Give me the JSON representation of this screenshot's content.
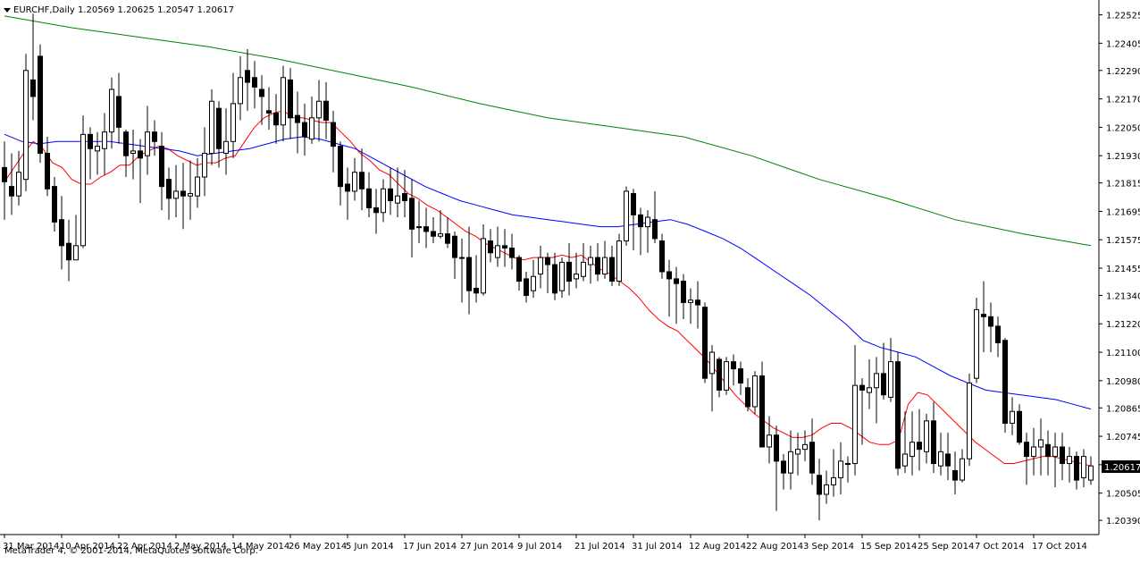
{
  "header": {
    "symbol_line": "EURCHF,Daily  1.20569 1.20625 1.20547 1.20617"
  },
  "footer": {
    "copyright": "MetaTrader 4, © 2001-2014, MetaQuotes Software Corp."
  },
  "colors": {
    "bull_body": "#ffffff",
    "bear_body": "#000000",
    "ma_fast": "#ff0000",
    "ma_mid": "#0000ff",
    "ma_slow": "#008000",
    "price_tag_bg": "#000000"
  },
  "chart_data": {
    "type": "candlestick",
    "title": "EURCHF,Daily",
    "last_quote": {
      "open": 1.20569,
      "high": 1.20625,
      "low": 1.20547,
      "close": 1.20617
    },
    "current_price_label": "1.20617",
    "ylim": [
      1.2033,
      1.2258
    ],
    "y_ticks": [
      "1.22525",
      "1.22405",
      "1.22290",
      "1.22170",
      "1.22050",
      "1.21930",
      "1.21815",
      "1.21695",
      "1.21575",
      "1.21455",
      "1.21340",
      "1.21220",
      "1.21100",
      "1.20980",
      "1.20865",
      "1.20745",
      "1.20625",
      "1.20505",
      "1.20390"
    ],
    "x_ticks": [
      "31 Mar 2014",
      "10 Apr 2014",
      "22 Apr 2014",
      "2 May 2014",
      "14 May 2014",
      "26 May 2014",
      "5 Jun 2014",
      "17 Jun 2014",
      "27 Jun 2014",
      "9 Jul 2014",
      "21 Jul 2014",
      "31 Jul 2014",
      "12 Aug 2014",
      "22 Aug 2014",
      "3 Sep 2014",
      "15 Sep 2014",
      "25 Sep 2014",
      "7 Oct 2014",
      "17 Oct 2014"
    ],
    "x_tick_bar_index": [
      0,
      8,
      16,
      24,
      32,
      40,
      48,
      56,
      64,
      72,
      80,
      88,
      96,
      104,
      112,
      120,
      128,
      136,
      144
    ],
    "grid": false,
    "candles": [
      [
        1.2188,
        1.2182,
        1.2199,
        1.2166
      ],
      [
        1.218,
        1.2176,
        1.2194,
        1.2168
      ],
      [
        1.2176,
        1.2186,
        1.2195,
        1.2172
      ],
      [
        1.2183,
        1.2229,
        1.2236,
        1.2178
      ],
      [
        1.2225,
        1.2218,
        1.2253,
        1.2208
      ],
      [
        1.2235,
        1.2194,
        1.224,
        1.219
      ],
      [
        1.2194,
        1.2179,
        1.2201,
        1.2176
      ],
      [
        1.218,
        1.2165,
        1.2184,
        1.2161
      ],
      [
        1.2166,
        1.2155,
        1.2176,
        1.2145
      ],
      [
        1.2156,
        1.2149,
        1.2166,
        1.214
      ],
      [
        1.2149,
        1.2155,
        1.2168,
        1.2149
      ],
      [
        1.2155,
        1.2202,
        1.221,
        1.2154
      ],
      [
        1.2202,
        1.2196,
        1.2205,
        1.2183
      ],
      [
        1.2195,
        1.2197,
        1.2203,
        1.2185
      ],
      [
        1.2196,
        1.2203,
        1.2211,
        1.2185
      ],
      [
        1.2203,
        1.2221,
        1.2226,
        1.2196
      ],
      [
        1.2218,
        1.2205,
        1.2228,
        1.2198
      ],
      [
        1.2203,
        1.2193,
        1.2204,
        1.2184
      ],
      [
        1.2194,
        1.2195,
        1.2204,
        1.2183
      ],
      [
        1.2195,
        1.2192,
        1.22,
        1.2173
      ],
      [
        1.2193,
        1.2203,
        1.2214,
        1.2185
      ],
      [
        1.2203,
        1.2199,
        1.2208,
        1.2193
      ],
      [
        1.2197,
        1.218,
        1.2203,
        1.217
      ],
      [
        1.2183,
        1.2175,
        1.2188,
        1.2166
      ],
      [
        1.2175,
        1.2178,
        1.2189,
        1.2167
      ],
      [
        1.2178,
        1.2176,
        1.219,
        1.2162
      ],
      [
        1.2176,
        1.2177,
        1.2191,
        1.2166
      ],
      [
        1.2176,
        1.2184,
        1.2192,
        1.2171
      ],
      [
        1.2184,
        1.2194,
        1.2205,
        1.2176
      ],
      [
        1.2194,
        1.2216,
        1.2221,
        1.2189
      ],
      [
        1.2213,
        1.2196,
        1.2216,
        1.2188
      ],
      [
        1.2194,
        1.2199,
        1.2213,
        1.2185
      ],
      [
        1.2199,
        1.2215,
        1.2228,
        1.2192
      ],
      [
        1.2215,
        1.2226,
        1.2235,
        1.2208
      ],
      [
        1.2229,
        1.2224,
        1.2238,
        1.2212
      ],
      [
        1.2226,
        1.2222,
        1.2233,
        1.2213
      ],
      [
        1.2221,
        1.2218,
        1.2227,
        1.2206
      ],
      [
        1.2212,
        1.2211,
        1.2222,
        1.2204
      ],
      [
        1.2211,
        1.2206,
        1.2219,
        1.2198
      ],
      [
        1.2206,
        1.2226,
        1.2231,
        1.2199
      ],
      [
        1.2225,
        1.2209,
        1.223,
        1.22
      ],
      [
        1.221,
        1.2207,
        1.222,
        1.2194
      ],
      [
        1.2207,
        1.2201,
        1.2215,
        1.2193
      ],
      [
        1.22,
        1.2209,
        1.2218,
        1.2198
      ],
      [
        1.2209,
        1.2216,
        1.2225,
        1.2199
      ],
      [
        1.2216,
        1.2208,
        1.2224,
        1.22
      ],
      [
        1.2207,
        1.2197,
        1.2212,
        1.2186
      ],
      [
        1.2197,
        1.218,
        1.2199,
        1.2172
      ],
      [
        1.2181,
        1.2178,
        1.2188,
        1.2166
      ],
      [
        1.2178,
        1.2186,
        1.2192,
        1.2174
      ],
      [
        1.2186,
        1.2179,
        1.2196,
        1.217
      ],
      [
        1.2179,
        1.2171,
        1.2186,
        1.2167
      ],
      [
        1.2171,
        1.2169,
        1.2179,
        1.216
      ],
      [
        1.2169,
        1.2179,
        1.2183,
        1.2165
      ],
      [
        1.2179,
        1.2174,
        1.2188,
        1.2168
      ],
      [
        1.2173,
        1.2176,
        1.2188,
        1.2167
      ],
      [
        1.2177,
        1.2174,
        1.2187,
        1.2167
      ],
      [
        1.2175,
        1.2162,
        1.2183,
        1.215
      ],
      [
        1.2163,
        1.2163,
        1.2174,
        1.2156
      ],
      [
        1.2163,
        1.2161,
        1.2171,
        1.2154
      ],
      [
        1.2161,
        1.2159,
        1.2167,
        1.2156
      ],
      [
        1.2159,
        1.216,
        1.217,
        1.2158
      ],
      [
        1.216,
        1.2156,
        1.2167,
        1.2154
      ],
      [
        1.2159,
        1.215,
        1.2161,
        1.2141
      ],
      [
        1.215,
        1.215,
        1.2158,
        1.2131
      ],
      [
        1.215,
        1.2136,
        1.2163,
        1.2126
      ],
      [
        1.2137,
        1.2135,
        1.2151,
        1.2131
      ],
      [
        1.2135,
        1.2158,
        1.2164,
        1.2134
      ],
      [
        1.2157,
        1.2152,
        1.2162,
        1.2148
      ],
      [
        1.215,
        1.2155,
        1.2163,
        1.2146
      ],
      [
        1.2155,
        1.2154,
        1.2162,
        1.2146
      ],
      [
        1.2154,
        1.215,
        1.216,
        1.2145
      ],
      [
        1.215,
        1.214,
        1.2151,
        1.2136
      ],
      [
        1.2141,
        1.2134,
        1.2144,
        1.2131
      ],
      [
        1.2136,
        1.2142,
        1.2149,
        1.2133
      ],
      [
        1.2143,
        1.215,
        1.2155,
        1.2137
      ],
      [
        1.215,
        1.2147,
        1.2152,
        1.2135
      ],
      [
        1.2147,
        1.2135,
        1.2152,
        1.2132
      ],
      [
        1.2136,
        1.2148,
        1.215,
        1.2133
      ],
      [
        1.2148,
        1.214,
        1.2156,
        1.2134
      ],
      [
        1.2141,
        1.2143,
        1.2152,
        1.2137
      ],
      [
        1.2142,
        1.2148,
        1.2156,
        1.214
      ],
      [
        1.2147,
        1.215,
        1.2155,
        1.2139
      ],
      [
        1.215,
        1.2143,
        1.2156,
        1.214
      ],
      [
        1.2143,
        1.215,
        1.2157,
        1.2141
      ],
      [
        1.215,
        1.214,
        1.2155,
        1.2138
      ],
      [
        1.214,
        1.2157,
        1.216,
        1.2138
      ],
      [
        1.2157,
        1.2178,
        1.218,
        1.2155
      ],
      [
        1.2177,
        1.2168,
        1.2179,
        1.2153
      ],
      [
        1.2168,
        1.2163,
        1.2171,
        1.2151
      ],
      [
        1.2163,
        1.2167,
        1.217,
        1.2152
      ],
      [
        1.2166,
        1.2158,
        1.2178,
        1.2156
      ],
      [
        1.2157,
        1.2144,
        1.216,
        1.2141
      ],
      [
        1.2144,
        1.2141,
        1.2149,
        1.2125
      ],
      [
        1.2141,
        1.2139,
        1.2146,
        1.2122
      ],
      [
        1.214,
        1.2131,
        1.2143,
        1.2124
      ],
      [
        1.2131,
        1.2132,
        1.2137,
        1.2122
      ],
      [
        1.2132,
        1.213,
        1.214,
        1.212
      ],
      [
        1.2129,
        1.2099,
        1.2131,
        1.2097
      ],
      [
        1.2101,
        1.211,
        1.2113,
        1.2085
      ],
      [
        1.2107,
        1.2094,
        1.2108,
        1.2091
      ],
      [
        1.2094,
        1.2106,
        1.2108,
        1.2092
      ],
      [
        1.2106,
        1.2103,
        1.2109,
        1.2096
      ],
      [
        1.2103,
        1.2097,
        1.2106,
        1.2092
      ],
      [
        1.2095,
        1.2087,
        1.2099,
        1.2085
      ],
      [
        1.2087,
        1.21,
        1.2102,
        1.2084
      ],
      [
        1.21,
        1.207,
        1.2106,
        1.207
      ],
      [
        1.207,
        1.2075,
        1.2083,
        1.2063
      ],
      [
        1.2075,
        1.2064,
        1.2079,
        1.2043
      ],
      [
        1.2064,
        1.2059,
        1.2067,
        1.2052
      ],
      [
        1.2059,
        1.2068,
        1.2077,
        1.2052
      ],
      [
        1.2067,
        1.2069,
        1.2076,
        1.2058
      ],
      [
        1.2069,
        1.2071,
        1.2077,
        1.2064
      ],
      [
        1.2072,
        1.2059,
        1.2082,
        1.2054
      ],
      [
        1.2058,
        1.205,
        1.2065,
        1.2039
      ],
      [
        1.205,
        1.2054,
        1.206,
        1.2046
      ],
      [
        1.2054,
        1.2057,
        1.2069,
        1.2049
      ],
      [
        1.2057,
        1.2064,
        1.2072,
        1.205
      ],
      [
        1.2063,
        1.2063,
        1.2066,
        1.2055
      ],
      [
        1.2063,
        1.2096,
        1.2113,
        1.2058
      ],
      [
        1.2096,
        1.2094,
        1.2099,
        1.2071
      ],
      [
        1.2093,
        1.2095,
        1.2107,
        1.2086
      ],
      [
        1.2095,
        1.2101,
        1.2108,
        1.208
      ],
      [
        1.2101,
        1.2092,
        1.2114,
        1.209
      ],
      [
        1.2091,
        1.2106,
        1.2116,
        1.2089
      ],
      [
        1.2106,
        1.2061,
        1.211,
        1.2058
      ],
      [
        1.2062,
        1.2067,
        1.2085,
        1.2059
      ],
      [
        1.2066,
        1.2072,
        1.2085,
        1.2058
      ],
      [
        1.2072,
        1.2069,
        1.2086,
        1.206
      ],
      [
        1.2068,
        1.2081,
        1.2084,
        1.2063
      ],
      [
        1.2081,
        1.2063,
        1.2089,
        1.2059
      ],
      [
        1.2062,
        1.2068,
        1.2076,
        1.2058
      ],
      [
        1.2067,
        1.2062,
        1.2076,
        1.2056
      ],
      [
        1.206,
        1.2056,
        1.2068,
        1.205
      ],
      [
        1.2056,
        1.2065,
        1.2069,
        1.2055
      ],
      [
        1.2065,
        1.2097,
        1.2101,
        1.2062
      ],
      [
        1.2099,
        1.2128,
        1.2133,
        1.2097
      ],
      [
        1.2126,
        1.2125,
        1.214,
        1.211
      ],
      [
        1.2125,
        1.2121,
        1.2131,
        1.211
      ],
      [
        1.2121,
        1.2114,
        1.2125,
        1.2108
      ],
      [
        1.2115,
        1.208,
        1.2116,
        1.2076
      ],
      [
        1.208,
        1.2085,
        1.2091,
        1.2075
      ],
      [
        1.2085,
        1.2072,
        1.2088,
        1.2071
      ],
      [
        1.2072,
        1.2066,
        1.2076,
        1.2054
      ],
      [
        1.2066,
        1.207,
        1.2078,
        1.2058
      ],
      [
        1.207,
        1.2073,
        1.2082,
        1.2058
      ],
      [
        1.2071,
        1.2066,
        1.2077,
        1.2058
      ],
      [
        1.2066,
        1.207,
        1.2076,
        1.2053
      ],
      [
        1.207,
        1.2063,
        1.2076,
        1.2056
      ],
      [
        1.2063,
        1.2066,
        1.207,
        1.2055
      ],
      [
        1.2066,
        1.2056,
        1.2068,
        1.2052
      ],
      [
        1.2057,
        1.2066,
        1.2069,
        1.2053
      ],
      [
        1.2056,
        1.2062,
        1.2066,
        1.2054
      ]
    ],
    "series": [
      {
        "color": "#ff0000",
        "values": [
          1.2182,
          1.2188,
          1.2194,
          1.2199,
          1.2196,
          1.219,
          1.2188,
          1.2183,
          1.2181,
          1.2181,
          1.2184,
          1.2186,
          1.2189,
          1.2189,
          1.2193,
          1.2195,
          1.2197,
          1.2196,
          1.2193,
          1.2191,
          1.2189,
          1.219,
          1.219,
          1.2192,
          1.2193,
          1.2199,
          1.2205,
          1.2209,
          1.2211,
          1.2212,
          1.2209,
          1.2209,
          1.2208,
          1.2207,
          1.2207,
          1.2203,
          1.2199,
          1.2194,
          1.2191,
          1.2187,
          1.2185,
          1.2181,
          1.2177,
          1.2175,
          1.2172,
          1.217,
          1.2167,
          1.2164,
          1.2161,
          1.2159,
          1.2156,
          1.2154,
          1.2152,
          1.215,
          1.2149,
          1.215,
          1.215,
          1.215,
          1.2151,
          1.215,
          1.2151,
          1.2148,
          1.2145,
          1.2143,
          1.214,
          1.2137,
          1.2133,
          1.2128,
          1.2124,
          1.2121,
          1.2119,
          1.2115,
          1.2111,
          1.2107,
          1.2102,
          1.2097,
          1.2092,
          1.2088,
          1.2084,
          1.2081,
          1.2078,
          1.2076,
          1.2074,
          1.2074,
          1.2075,
          1.2078,
          1.208,
          1.208,
          1.2078,
          1.2075,
          1.2072,
          1.2071,
          1.2071,
          1.2073,
          1.2088,
          1.2093,
          1.2092,
          1.2088,
          1.2084,
          1.208,
          1.2076,
          1.2072,
          1.2069,
          1.2066,
          1.2063,
          1.2063,
          1.2064,
          1.2065,
          1.2066,
          1.2066,
          1.2065,
          1.2064,
          1.2063,
          1.2062
        ]
      },
      {
        "color": "#0000ff",
        "values": [
          1.2202,
          1.2199,
          1.2198,
          1.2199,
          1.2199,
          1.2199,
          1.2199,
          1.2198,
          1.2197,
          1.2196,
          1.2195,
          1.2193,
          1.2194,
          1.2195,
          1.2196,
          1.2198,
          1.22,
          1.2201,
          1.22,
          1.2198,
          1.2196,
          1.2192,
          1.2188,
          1.2184,
          1.218,
          1.2177,
          1.2174,
          1.2172,
          1.217,
          1.2168,
          1.2167,
          1.2166,
          1.2165,
          1.2164,
          1.2163,
          1.2163,
          1.2164,
          1.2165,
          1.2166,
          1.2164,
          1.2161,
          1.2158,
          1.2154,
          1.2149,
          1.2144,
          1.2139,
          1.2134,
          1.2128,
          1.2122,
          1.2115,
          1.2112,
          1.211,
          1.2108,
          1.2104,
          1.21,
          1.2097,
          1.2094,
          1.2093,
          1.2092,
          1.2091,
          1.209,
          1.2088,
          1.2086
        ]
      },
      {
        "color": "#008000",
        "values": [
          1.2252,
          1.2247,
          1.2243,
          1.2239,
          1.2234,
          1.2228,
          1.2222,
          1.2215,
          1.2209,
          1.2205,
          1.2201,
          1.2193,
          1.2183,
          1.2175,
          1.2166,
          1.216,
          1.2155
        ]
      }
    ]
  }
}
